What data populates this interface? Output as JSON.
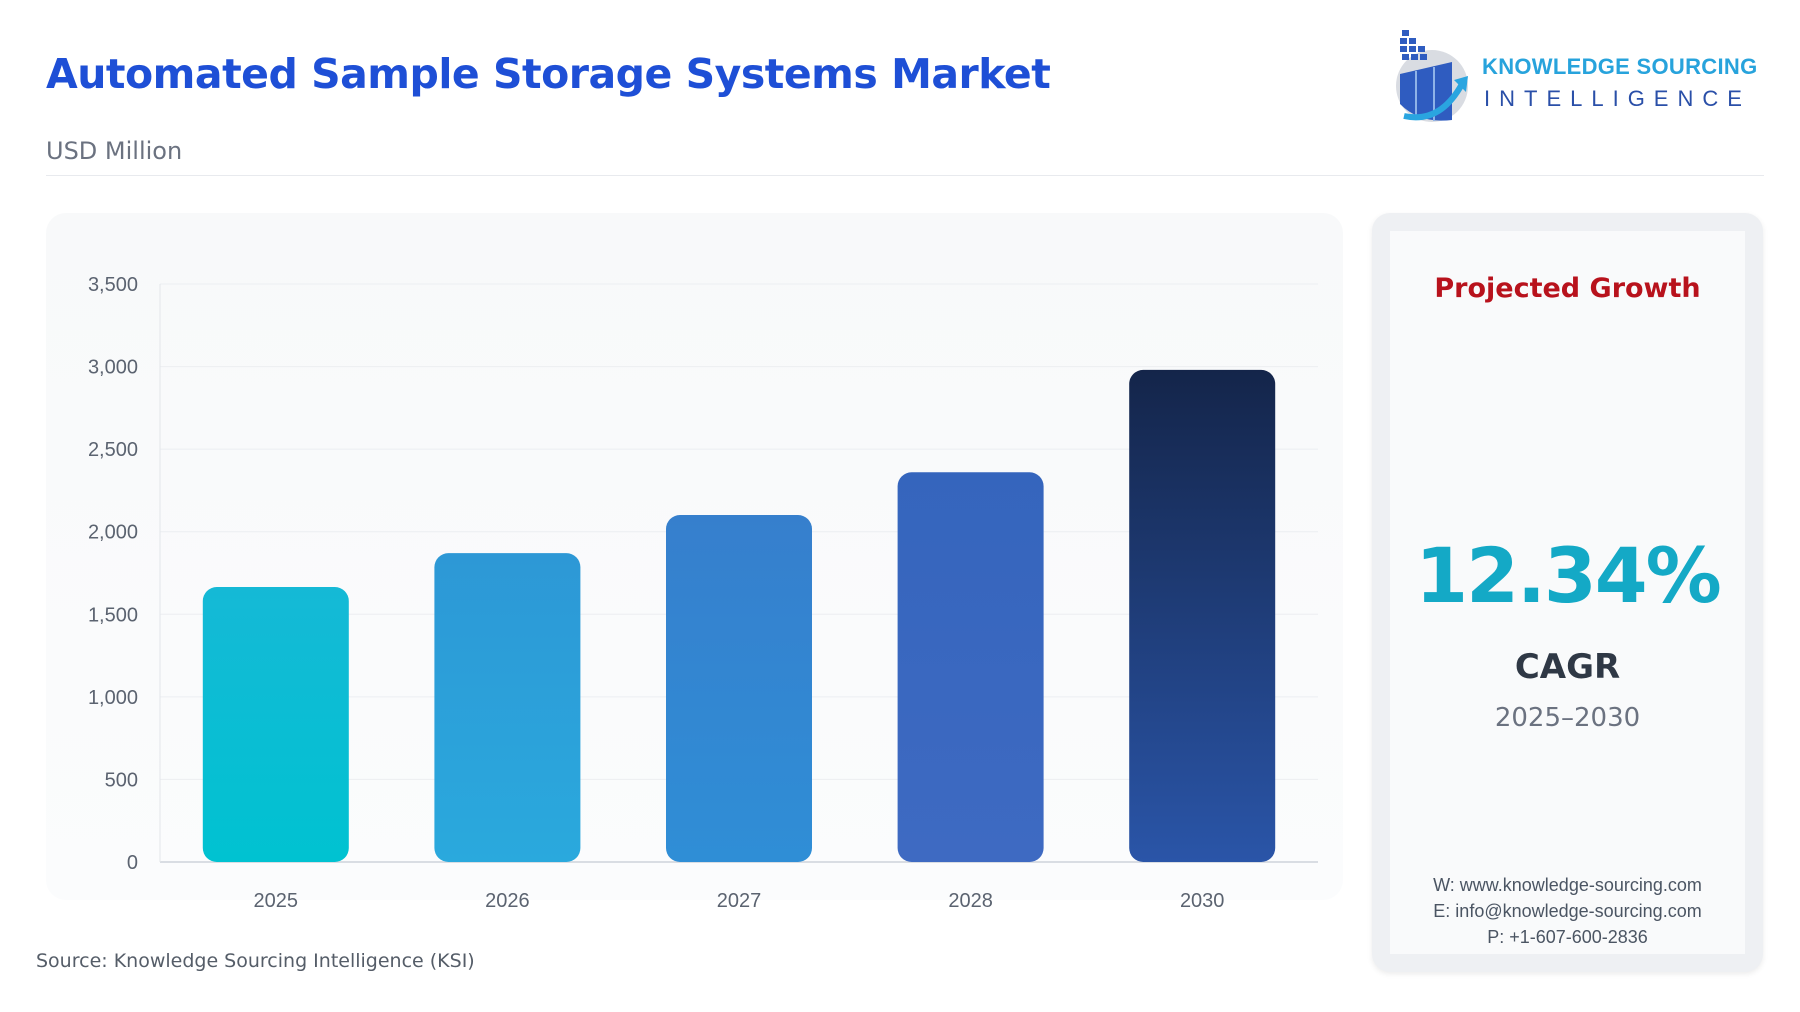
{
  "header": {
    "title": "Automated Sample Storage Systems Market",
    "subtitle": "USD Million"
  },
  "logo": {
    "line1": "KNOWLEDGE SOURCING",
    "line2": "INTELLIGENCE"
  },
  "chart_data": {
    "type": "bar",
    "title": "Automated Sample Storage Systems Market",
    "xlabel": "",
    "ylabel": "USD Million",
    "categories": [
      "2025",
      "2026",
      "2027",
      "2028",
      "2030"
    ],
    "values": [
      1665,
      1870,
      2101,
      2360,
      2980
    ],
    "ylim": [
      0,
      3500
    ],
    "yticks": [
      0,
      500,
      1000,
      1500,
      2000,
      2500,
      3000,
      3500
    ],
    "ytick_labels": [
      "0",
      "500",
      "1,000",
      "1,500",
      "2,000",
      "2,500",
      "3,000",
      "3,500"
    ],
    "grid": true,
    "colors_top": [
      "#15b9d6",
      "#2d98d6",
      "#367fcd",
      "#3565bd",
      "#14254a"
    ],
    "colors_bottom": [
      "#00c2d1",
      "#2aa9dd",
      "#2f8ed6",
      "#3e6ac2",
      "#2a55a8"
    ]
  },
  "side": {
    "heading": "Projected Growth",
    "value": "12.34%",
    "label": "CAGR",
    "period": "2025–2030",
    "website": "W: www.knowledge-sourcing.com",
    "email": "E: info@knowledge-sourcing.com",
    "phone": "P: +1-607-600-2836"
  },
  "source": "Source: Knowledge Sourcing Intelligence (KSI)"
}
